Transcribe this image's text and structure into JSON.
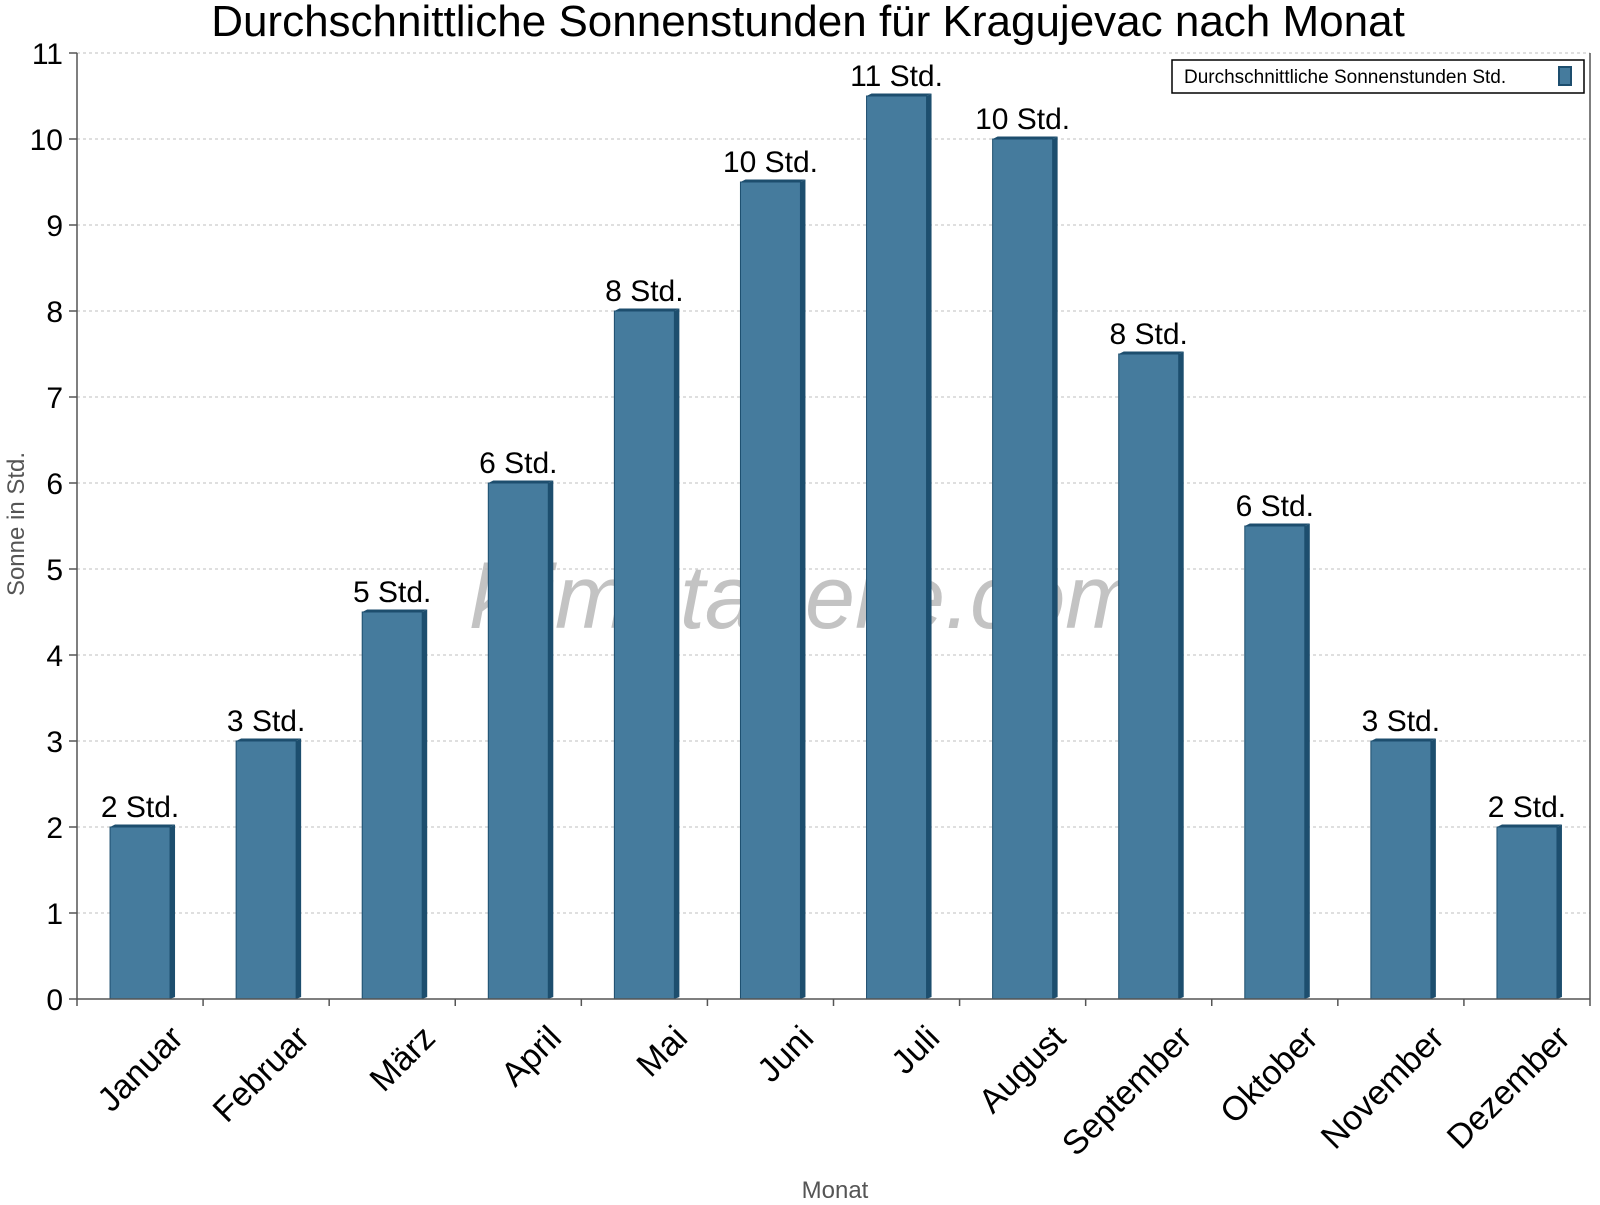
{
  "chart_data": {
    "type": "bar",
    "title": "Durchschnittliche Sonnenstunden für Kragujevac nach Monat",
    "xlabel": "Monat",
    "ylabel": "Sonne in Std.",
    "watermark": "klimatabelle.com",
    "categories": [
      "Januar",
      "Februar",
      "März",
      "April",
      "Mai",
      "Juni",
      "Juli",
      "August",
      "September",
      "Oktober",
      "November",
      "Dezember"
    ],
    "series": [
      {
        "name": "Durchschnittliche Sonnenstunden Std.",
        "values": [
          2,
          3,
          4.5,
          6,
          8,
          9.5,
          10.5,
          10,
          7.5,
          5.5,
          3,
          2
        ],
        "labels": [
          "2 Std.",
          "3 Std.",
          "5 Std.",
          "6 Std.",
          "8 Std.",
          "10 Std.",
          "11 Std.",
          "10 Std.",
          "8 Std.",
          "6 Std.",
          "3 Std.",
          "2 Std."
        ]
      }
    ],
    "ylim": [
      0,
      11
    ],
    "yticks": [
      "0",
      "1",
      "2",
      "3",
      "4",
      "5",
      "6",
      "7",
      "8",
      "9",
      "10",
      "11"
    ],
    "grid": true,
    "legend_position": "top-right",
    "colors": {
      "bar": "#457b9d",
      "bar_side": "#1d4e6e",
      "bar_top": "#1d4e6e",
      "axis": "#555555",
      "grid": "#cccccc",
      "axis_title": "#555555"
    }
  }
}
